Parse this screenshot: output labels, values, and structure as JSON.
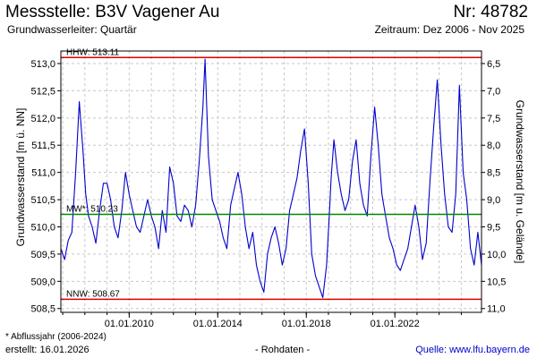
{
  "header": {
    "title_left": "Messstelle: B3V Vagener Au",
    "title_right": "Nr: 48782",
    "subtitle_left": "Grundwasserleiter: Quartär",
    "subtitle_right": "Zeitraum: Dez 2006 - Nov 2025"
  },
  "footer": {
    "note": "* Abflussjahr (2006-2024)",
    "created": "erstellt:  16.01.2026",
    "raw": "- Rohdaten -",
    "source": "Quelle:  www.lfu.bayern.de"
  },
  "colors": {
    "series": "#0000cc",
    "reference_hhw": "#dd0000",
    "reference_nnw": "#dd0000",
    "reference_mw": "#008800",
    "grid": "#c8c8c8"
  },
  "chart_data": {
    "type": "line",
    "ylabel": "Grundwasserstand [m ü. NN]",
    "y2label": "Grundwasserstand [m u. Gelände]",
    "ylim": [
      508.43,
      513.23
    ],
    "yticks": [
      508.5,
      509.0,
      509.5,
      510.0,
      510.5,
      511.0,
      511.5,
      512.0,
      512.5,
      513.0
    ],
    "ytick_labels": [
      "508,5",
      "509,0",
      "509,5",
      "510,0",
      "510,5",
      "511,0",
      "511,5",
      "512,0",
      "512,5",
      "513,0"
    ],
    "y2ticks": [
      6.5,
      7.0,
      7.5,
      8.0,
      8.5,
      9.0,
      9.5,
      10.0,
      10.5,
      11.0
    ],
    "y2tick_labels": [
      "6,5",
      "7,0",
      "7,5",
      "8,0",
      "8,5",
      "9,0",
      "9,5",
      "10,0",
      "10,5",
      "11,0"
    ],
    "y2_offset": 519.5,
    "xlim": [
      "2006-12-01",
      "2025-11-30"
    ],
    "xticks": [
      "2010-01-01",
      "2014-01-01",
      "2018-01-01",
      "2022-01-01"
    ],
    "xtick_labels": [
      "01.01.2010",
      "01.01.2014",
      "01.01.2018",
      "01.01.2022"
    ],
    "grid": true,
    "reference_lines": [
      {
        "label": "HHW: 513.11",
        "value": 513.11,
        "color": "#dd0000"
      },
      {
        "label": "MW*: 510.23",
        "value": 510.23,
        "color": "#008800"
      },
      {
        "label": "NNW: 508.67",
        "value": 508.67,
        "color": "#dd0000"
      }
    ],
    "series": [
      {
        "x": [
          "2006-12-01",
          "2007-02-01",
          "2007-04-01",
          "2007-06-01",
          "2007-08-01",
          "2007-10-01",
          "2007-12-01",
          "2008-01-15",
          "2008-03-01",
          "2008-05-01",
          "2008-07-01",
          "2008-09-01",
          "2008-11-01",
          "2009-01-01",
          "2009-03-01",
          "2009-05-01",
          "2009-07-01",
          "2009-09-01",
          "2009-11-01",
          "2010-01-01",
          "2010-03-01",
          "2010-05-01",
          "2010-07-01",
          "2010-09-01",
          "2010-11-01",
          "2011-01-01",
          "2011-03-01",
          "2011-05-01",
          "2011-07-01",
          "2011-09-01",
          "2011-11-01",
          "2012-01-01",
          "2012-03-01",
          "2012-05-01",
          "2012-07-01",
          "2012-09-01",
          "2012-11-01",
          "2013-01-01",
          "2013-03-01",
          "2013-05-01",
          "2013-06-05",
          "2013-08-01",
          "2013-10-01",
          "2013-12-01",
          "2014-02-01",
          "2014-04-01",
          "2014-06-01",
          "2014-08-01",
          "2014-10-01",
          "2014-12-01",
          "2015-02-01",
          "2015-04-01",
          "2015-06-01",
          "2015-08-01",
          "2015-10-01",
          "2015-12-01",
          "2016-02-01",
          "2016-04-01",
          "2016-06-01",
          "2016-08-01",
          "2016-10-01",
          "2016-12-01",
          "2017-02-01",
          "2017-04-01",
          "2017-06-01",
          "2017-08-01",
          "2017-10-01",
          "2017-12-01",
          "2018-02-01",
          "2018-04-01",
          "2018-06-01",
          "2018-08-01",
          "2018-10-01",
          "2018-12-01",
          "2019-01-15",
          "2019-02-15",
          "2019-04-01",
          "2019-06-01",
          "2019-08-01",
          "2019-10-01",
          "2019-12-01",
          "2020-02-01",
          "2020-04-01",
          "2020-06-01",
          "2020-08-01",
          "2020-10-01",
          "2020-12-01",
          "2021-02-01",
          "2021-04-01",
          "2021-06-01",
          "2021-08-01",
          "2021-10-01",
          "2021-12-01",
          "2022-02-01",
          "2022-04-01",
          "2022-06-01",
          "2022-08-01",
          "2022-10-01",
          "2022-12-01",
          "2023-02-01",
          "2023-04-01",
          "2023-06-01",
          "2023-08-01",
          "2023-10-01",
          "2023-12-01",
          "2024-02-01",
          "2024-04-01",
          "2024-06-01",
          "2024-08-01",
          "2024-10-01",
          "2024-12-01",
          "2025-02-01",
          "2025-04-01",
          "2025-06-01",
          "2025-08-01",
          "2025-10-01",
          "2025-11-30"
        ],
        "values": [
          509.6,
          509.4,
          509.75,
          509.9,
          511.0,
          512.3,
          511.4,
          510.6,
          510.2,
          510.0,
          509.7,
          510.3,
          510.8,
          510.8,
          510.5,
          510.0,
          509.8,
          510.3,
          511.0,
          510.6,
          510.3,
          510.0,
          509.9,
          510.2,
          510.5,
          510.2,
          510.0,
          509.6,
          510.3,
          509.9,
          511.1,
          510.8,
          510.2,
          510.1,
          510.4,
          510.3,
          510.0,
          510.4,
          511.2,
          512.2,
          513.08,
          511.3,
          510.5,
          510.3,
          510.1,
          509.8,
          509.6,
          510.4,
          510.7,
          511.0,
          510.6,
          510.0,
          509.6,
          509.9,
          509.3,
          509.0,
          508.8,
          509.5,
          509.8,
          510.0,
          509.7,
          509.3,
          509.6,
          510.3,
          510.6,
          510.9,
          511.4,
          511.8,
          510.8,
          509.5,
          509.1,
          508.9,
          508.7,
          509.3,
          510.2,
          510.9,
          511.6,
          511.0,
          510.6,
          510.3,
          510.5,
          511.2,
          511.6,
          510.8,
          510.4,
          510.2,
          511.3,
          512.2,
          511.5,
          510.6,
          510.2,
          509.8,
          509.6,
          509.3,
          509.2,
          509.4,
          509.6,
          510.0,
          510.4,
          510.0,
          509.4,
          509.7,
          510.8,
          511.8,
          512.7,
          511.5,
          510.6,
          510.0,
          509.9,
          510.6,
          512.6,
          511.0,
          510.5,
          509.6,
          509.3,
          509.9,
          509.3
        ]
      }
    ]
  }
}
